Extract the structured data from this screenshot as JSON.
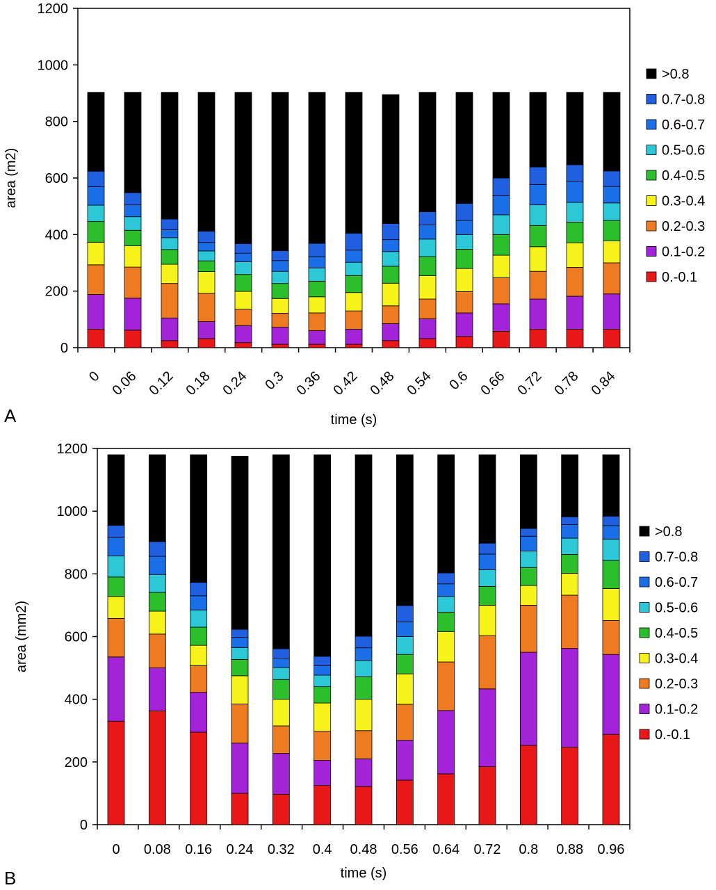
{
  "legend_categories": [
    ">0.8",
    "0.7-0.8",
    "0.6-0.7",
    "0.5-0.6",
    "0.4-0.5",
    "0.3-0.4",
    "0.2-0.3",
    "0.1-0.2",
    "0.-0.1"
  ],
  "colors": {
    ">0.8": "#000000",
    "0.7-0.8": "#1f5fe0",
    "0.6-0.7": "#1a6fe8",
    "0.5-0.6": "#2cc8d8",
    "0.4-0.5": "#2bbf2b",
    "0.3-0.4": "#f7f31a",
    "0.2-0.3": "#ee7a22",
    "0.1-0.2": "#a323d8",
    "0.-0.1": "#e81818"
  },
  "chart_data": [
    {
      "panel_label": "A",
      "type": "bar",
      "stacked": true,
      "xlabel": "time (s)",
      "ylabel": "area (m2)",
      "ylim": [
        0,
        1200
      ],
      "yticks": [
        0,
        200,
        400,
        600,
        800,
        1000,
        1200
      ],
      "grid": false,
      "legend_position": "right",
      "tick_rotation": -45,
      "categories": [
        "0",
        "0.06",
        "0.12",
        "0.18",
        "0.24",
        "0.3",
        "0.36",
        "0.42",
        "0.48",
        "0.54",
        "0.6",
        "0.66",
        "0.72",
        "0.78",
        "0.84"
      ],
      "series": [
        {
          "name": "0.-0.1",
          "values": [
            65,
            62,
            25,
            32,
            18,
            12,
            12,
            12,
            25,
            32,
            40,
            58,
            65,
            65,
            65
          ]
        },
        {
          "name": "0.1-0.2",
          "values": [
            123,
            113,
            80,
            60,
            60,
            60,
            48,
            53,
            60,
            70,
            83,
            97,
            107,
            117,
            125
          ]
        },
        {
          "name": "0.2-0.3",
          "values": [
            105,
            110,
            122,
            100,
            58,
            50,
            63,
            65,
            63,
            70,
            75,
            92,
            98,
            102,
            110
          ]
        },
        {
          "name": "0.3-0.4",
          "values": [
            80,
            75,
            68,
            77,
            63,
            52,
            57,
            65,
            80,
            83,
            82,
            80,
            87,
            87,
            78
          ]
        },
        {
          "name": "0.4-0.5",
          "values": [
            73,
            55,
            52,
            38,
            60,
            53,
            55,
            60,
            60,
            67,
            68,
            73,
            75,
            73,
            72
          ]
        },
        {
          "name": "0.5-0.6",
          "values": [
            58,
            48,
            42,
            35,
            45,
            43,
            47,
            47,
            52,
            62,
            52,
            70,
            73,
            70,
            62
          ]
        },
        {
          "name": "0.6-0.7",
          "values": [
            65,
            42,
            28,
            30,
            30,
            38,
            40,
            43,
            42,
            50,
            50,
            67,
            72,
            75,
            58
          ]
        },
        {
          "name": "0.7-0.8",
          "values": [
            55,
            43,
            38,
            40,
            34,
            35,
            47,
            60,
            57,
            47,
            60,
            63,
            62,
            58,
            55
          ]
        },
        {
          "name": ">0.8",
          "values": [
            279,
            355,
            448,
            491,
            535,
            560,
            534,
            498,
            456,
            422,
            393,
            303,
            264,
            256,
            278
          ]
        }
      ]
    },
    {
      "panel_label": "B",
      "type": "bar",
      "stacked": true,
      "xlabel": "time (s)",
      "ylabel": "area (mm2)",
      "ylim": [
        0,
        1200
      ],
      "yticks": [
        0,
        200,
        400,
        600,
        800,
        1000,
        1200
      ],
      "grid": false,
      "legend_position": "right",
      "tick_rotation": 0,
      "categories": [
        "0",
        "0.08",
        "0.16",
        "0.24",
        "0.32",
        "0.4",
        "0.48",
        "0.56",
        "0.64",
        "0.72",
        "0.8",
        "0.88",
        "0.96"
      ],
      "series": [
        {
          "name": "0.-0.1",
          "values": [
            330,
            363,
            295,
            100,
            97,
            125,
            122,
            142,
            162,
            185,
            253,
            247,
            288
          ]
        },
        {
          "name": "0.1-0.2",
          "values": [
            205,
            137,
            127,
            160,
            130,
            80,
            88,
            127,
            202,
            248,
            297,
            315,
            255
          ]
        },
        {
          "name": "0.2-0.3",
          "values": [
            123,
            108,
            85,
            125,
            88,
            93,
            90,
            115,
            155,
            170,
            150,
            170,
            108
          ]
        },
        {
          "name": "0.3-0.4",
          "values": [
            70,
            73,
            65,
            90,
            85,
            90,
            100,
            97,
            97,
            97,
            63,
            70,
            102
          ]
        },
        {
          "name": "0.4-0.5",
          "values": [
            62,
            60,
            58,
            52,
            63,
            52,
            72,
            62,
            62,
            60,
            57,
            60,
            90
          ]
        },
        {
          "name": "0.5-0.6",
          "values": [
            67,
            57,
            55,
            38,
            38,
            37,
            52,
            57,
            50,
            53,
            53,
            52,
            68
          ]
        },
        {
          "name": "0.6-0.7",
          "values": [
            58,
            58,
            45,
            33,
            30,
            30,
            40,
            47,
            40,
            50,
            47,
            43,
            43
          ]
        },
        {
          "name": "0.7-0.8",
          "values": [
            40,
            47,
            43,
            25,
            30,
            30,
            37,
            52,
            35,
            35,
            25,
            25,
            30
          ]
        },
        {
          "name": ">0.8",
          "values": [
            225,
            277,
            407,
            552,
            619,
            643,
            579,
            481,
            377,
            282,
            235,
            198,
            196
          ]
        }
      ]
    }
  ]
}
